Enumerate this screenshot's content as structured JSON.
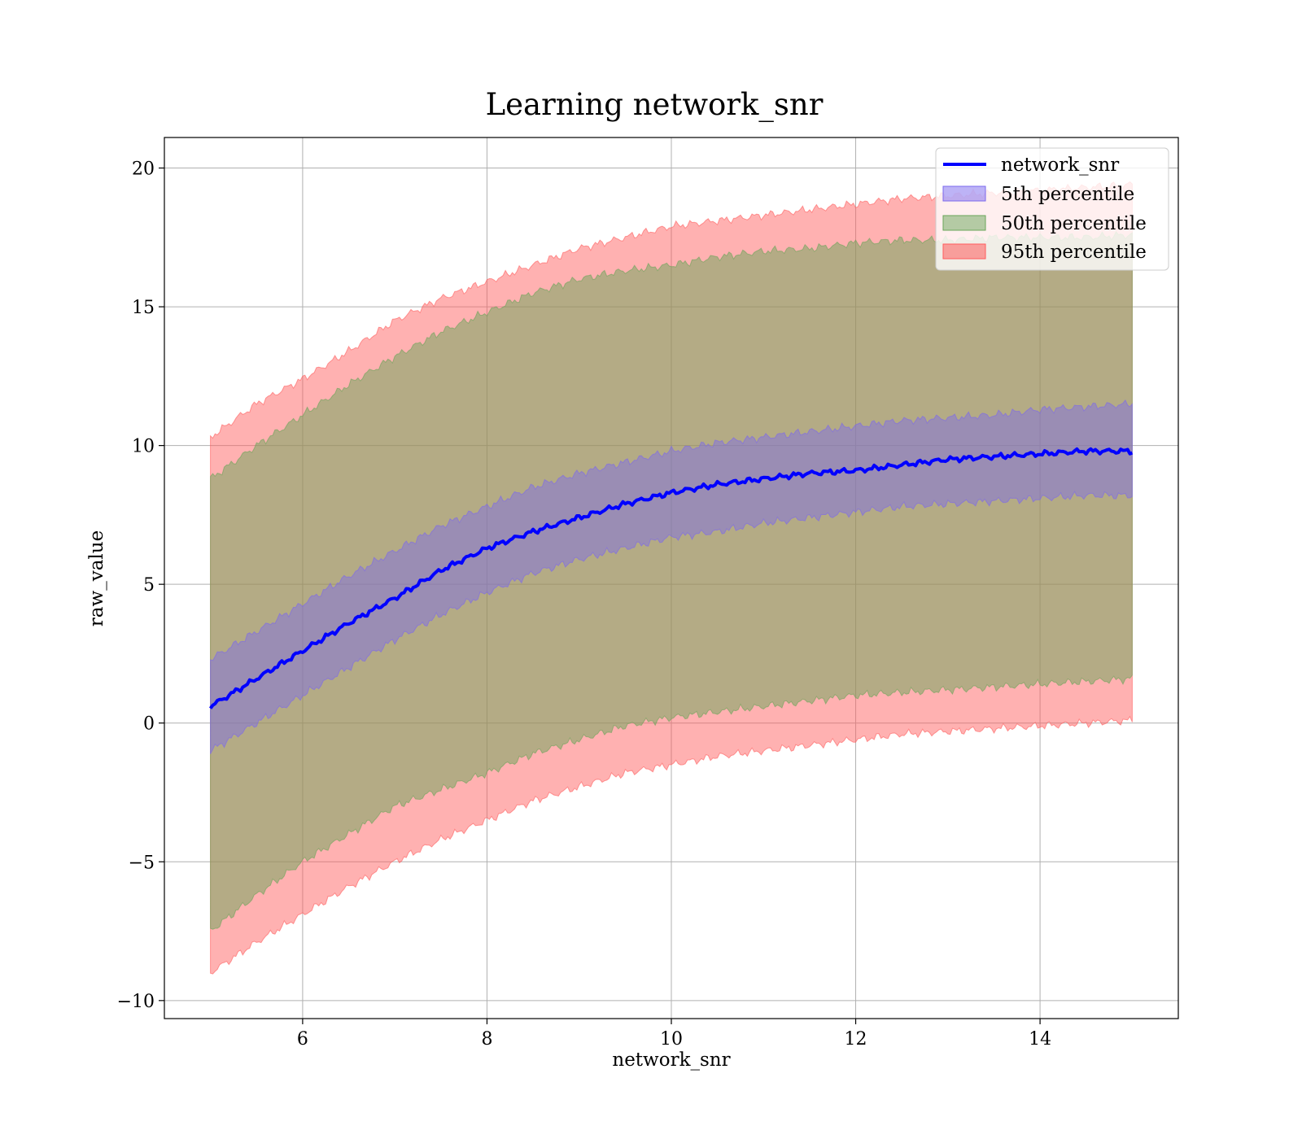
{
  "chart_data": {
    "type": "area",
    "title": "Learning network_snr",
    "xlabel": "network_snr",
    "ylabel": "raw_value",
    "xlim": [
      4.5,
      15.5
    ],
    "ylim": [
      -10.65,
      21.1
    ],
    "xticks": [
      6,
      8,
      10,
      12,
      14
    ],
    "yticks": [
      -10,
      -5,
      0,
      5,
      10,
      15,
      20
    ],
    "ytick_labels": [
      "−10",
      "−5",
      "0",
      "5",
      "10",
      "15",
      "20"
    ],
    "grid": true,
    "legend_position": "top-right",
    "x": [
      5.0,
      5.5,
      6.0,
      6.5,
      7.0,
      7.5,
      8.0,
      8.5,
      9.0,
      9.5,
      10.0,
      10.5,
      11.0,
      11.5,
      12.0,
      12.5,
      13.0,
      13.5,
      14.0,
      14.5,
      15.0
    ],
    "line": {
      "name": "network_snr",
      "color": "#0000ff",
      "values": [
        0.6,
        1.6,
        2.6,
        3.6,
        4.5,
        5.5,
        6.3,
        6.9,
        7.4,
        7.9,
        8.3,
        8.6,
        8.8,
        9.0,
        9.1,
        9.3,
        9.5,
        9.6,
        9.7,
        9.8,
        9.8
      ]
    },
    "series": [
      {
        "name": "5th percentile",
        "color": "#7b68ee",
        "lower": [
          -1.0,
          0.0,
          1.0,
          2.0,
          3.0,
          3.9,
          4.7,
          5.4,
          5.9,
          6.3,
          6.7,
          6.9,
          7.2,
          7.4,
          7.6,
          7.8,
          7.9,
          8.0,
          8.1,
          8.2,
          8.2
        ],
        "upper": [
          2.3,
          3.3,
          4.3,
          5.3,
          6.2,
          7.1,
          7.8,
          8.5,
          9.0,
          9.4,
          9.8,
          10.1,
          10.3,
          10.5,
          10.7,
          10.9,
          11.0,
          11.1,
          11.3,
          11.4,
          11.5
        ]
      },
      {
        "name": "50th percentile",
        "color": "#6aa55a",
        "lower": [
          -7.5,
          -6.2,
          -5.0,
          -4.0,
          -3.0,
          -2.4,
          -1.8,
          -1.1,
          -0.6,
          -0.1,
          0.2,
          0.4,
          0.6,
          0.8,
          1.0,
          1.1,
          1.2,
          1.3,
          1.4,
          1.5,
          1.6
        ],
        "upper": [
          8.8,
          10.0,
          11.1,
          12.2,
          13.2,
          14.1,
          14.8,
          15.5,
          16.0,
          16.3,
          16.5,
          16.8,
          17.0,
          17.1,
          17.3,
          17.4,
          17.4,
          17.5,
          17.5,
          17.5,
          17.6
        ]
      },
      {
        "name": "95th percentile",
        "color": "#ff5c5c",
        "lower": [
          -9.0,
          -7.9,
          -6.9,
          -5.9,
          -5.0,
          -4.2,
          -3.5,
          -2.8,
          -2.3,
          -1.8,
          -1.5,
          -1.2,
          -1.0,
          -0.8,
          -0.6,
          -0.4,
          -0.3,
          -0.2,
          -0.1,
          0.0,
          0.1
        ],
        "upper": [
          10.3,
          11.5,
          12.4,
          13.4,
          14.5,
          15.3,
          15.9,
          16.5,
          17.1,
          17.5,
          17.9,
          18.1,
          18.3,
          18.5,
          18.7,
          18.9,
          19.0,
          19.1,
          19.2,
          19.3,
          19.4
        ]
      }
    ]
  }
}
